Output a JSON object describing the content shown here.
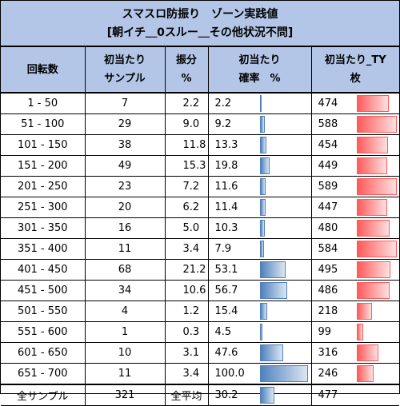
{
  "title": {
    "line1": "スマスロ防振り　ゾーン実践値",
    "line2": "[朝イチ＿0スルー＿その他状況不問]"
  },
  "headers": {
    "col1": "回転数",
    "col2_line1": "初当たり",
    "col2_line2": "サンプル",
    "col3_line1": "振分",
    "col3_line2": "%",
    "col4_line1": "初当たり",
    "col4_line2": "確率　%",
    "col5_line1": "初当たり_TY",
    "col5_line2": "枚"
  },
  "rows": [
    {
      "range": "1 - 50",
      "samples": "7",
      "dist": "2.2",
      "prob": "2.2",
      "ty": "474"
    },
    {
      "range": "51 - 100",
      "samples": "29",
      "dist": "9.0",
      "prob": "9.2",
      "ty": "588"
    },
    {
      "range": "101 - 150",
      "samples": "38",
      "dist": "11.8",
      "prob": "13.3",
      "ty": "454"
    },
    {
      "range": "151 - 200",
      "samples": "49",
      "dist": "15.3",
      "prob": "19.8",
      "ty": "449"
    },
    {
      "range": "201 - 250",
      "samples": "23",
      "dist": "7.2",
      "prob": "11.6",
      "ty": "589"
    },
    {
      "range": "251 - 300",
      "samples": "20",
      "dist": "6.2",
      "prob": "11.4",
      "ty": "447"
    },
    {
      "range": "301 - 350",
      "samples": "16",
      "dist": "5.0",
      "prob": "10.3",
      "ty": "480"
    },
    {
      "range": "351 - 400",
      "samples": "11",
      "dist": "3.4",
      "prob": "7.9",
      "ty": "584"
    },
    {
      "range": "401 - 450",
      "samples": "68",
      "dist": "21.2",
      "prob": "53.1",
      "ty": "495"
    },
    {
      "range": "451 - 500",
      "samples": "34",
      "dist": "10.6",
      "prob": "56.7",
      "ty": "486"
    },
    {
      "range": "501 - 550",
      "samples": "4",
      "dist": "1.2",
      "prob": "15.4",
      "ty": "218"
    },
    {
      "range": "551 - 600",
      "samples": "1",
      "dist": "0.3",
      "prob": "4.5",
      "ty": "99"
    },
    {
      "range": "601 - 650",
      "samples": "10",
      "dist": "3.1",
      "prob": "47.6",
      "ty": "316"
    },
    {
      "range": "651 - 700",
      "samples": "11",
      "dist": "3.4",
      "prob": "100.0",
      "ty": "246"
    }
  ],
  "footer": {
    "label": "全サンプル",
    "samples": "321",
    "avg_label": "全平均",
    "avg_prob": "30.2",
    "avg_ty": "477"
  },
  "bar_scales": {
    "prob_max": 100.0,
    "ty_max": 589
  },
  "colors": {
    "header_bg": "#b4c6e7",
    "prob_bar": "#4f81bd",
    "ty_bar": "#ff5a5a"
  }
}
